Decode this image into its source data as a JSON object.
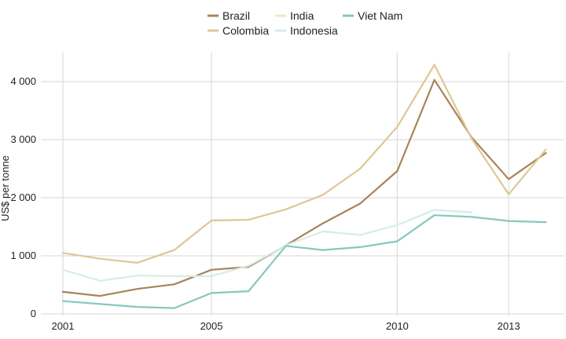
{
  "chart_data": {
    "type": "line",
    "ylabel": "US$ per tonne",
    "xlim": [
      2001,
      2014.5
    ],
    "ylim": [
      0,
      4500
    ],
    "x_ticks": [
      2001,
      2005,
      2010,
      2013
    ],
    "y_ticks": [
      0,
      1000,
      2000,
      3000,
      4000
    ],
    "x_tick_labels": [
      "2001",
      "2005",
      "2010",
      "2013"
    ],
    "y_tick_labels": [
      "0",
      "1 000",
      "2 000",
      "3 000",
      "4 000"
    ],
    "grid": true,
    "legend_position": "top-center",
    "series": [
      {
        "name": "Brazil",
        "color": "#a8845a",
        "x": [
          2001,
          2002,
          2003,
          2004,
          2005,
          2006,
          2007,
          2008,
          2009,
          2010,
          2011,
          2012,
          2013,
          2014
        ],
        "y": [
          380,
          310,
          430,
          510,
          760,
          810,
          1180,
          1560,
          1900,
          2460,
          4030,
          3040,
          2320,
          2770
        ]
      },
      {
        "name": "Colombia",
        "color": "#dfc795",
        "x": [
          2001,
          2002,
          2003,
          2004,
          2005,
          2006,
          2007,
          2008,
          2009,
          2010,
          2011,
          2012,
          2013,
          2014
        ],
        "y": [
          1050,
          950,
          880,
          1100,
          1610,
          1620,
          1800,
          2050,
          2500,
          3220,
          4290,
          3020,
          2060,
          2830
        ]
      },
      {
        "name": "India",
        "color": "#f2e6c8",
        "x": [],
        "y": []
      },
      {
        "name": "Indonesia",
        "color": "#d5ede7",
        "x": [
          2001,
          2002,
          2003,
          2004,
          2005,
          2006,
          2007,
          2008,
          2009,
          2010,
          2011,
          2012
        ],
        "y": [
          760,
          570,
          660,
          650,
          650,
          830,
          1180,
          1420,
          1360,
          1530,
          1790,
          1750
        ]
      },
      {
        "name": "Viet Nam",
        "color": "#86c8be",
        "x": [
          2001,
          2002,
          2003,
          2004,
          2005,
          2006,
          2007,
          2008,
          2009,
          2010,
          2011,
          2012,
          2013,
          2014
        ],
        "y": [
          220,
          170,
          120,
          100,
          360,
          390,
          1170,
          1100,
          1150,
          1250,
          1700,
          1670,
          1600,
          1580
        ]
      }
    ]
  }
}
